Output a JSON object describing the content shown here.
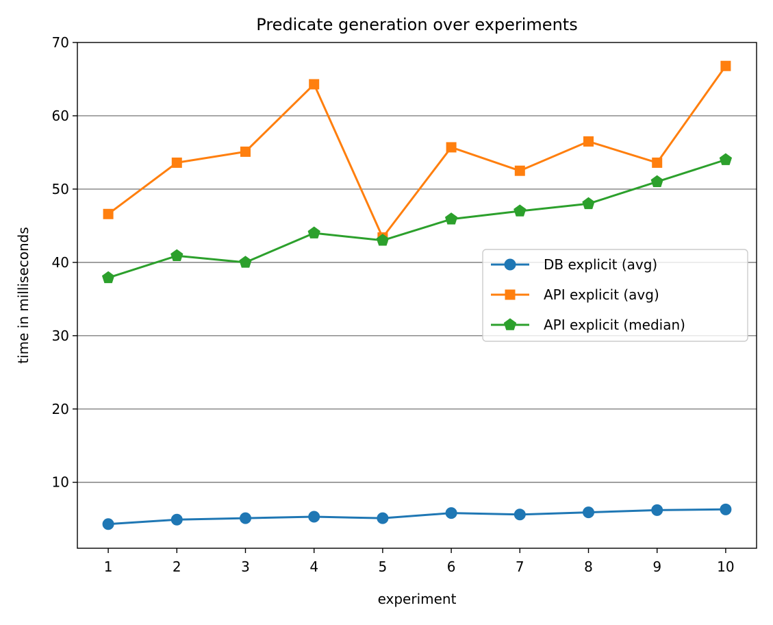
{
  "chart_data": {
    "type": "line",
    "title": "Predicate generation over experiments",
    "xlabel": "experiment",
    "ylabel": "time in milliseconds",
    "x": [
      1,
      2,
      3,
      4,
      5,
      6,
      7,
      8,
      9,
      10
    ],
    "xticks": [
      "1",
      "2",
      "3",
      "4",
      "5",
      "6",
      "7",
      "8",
      "9",
      "10"
    ],
    "xlim": [
      0.55,
      10.45
    ],
    "yticks": [
      10,
      20,
      30,
      40,
      50,
      60,
      70
    ],
    "ylim": [
      1.0,
      70
    ],
    "grid": "horizontal",
    "legend_position": "center-right",
    "series": [
      {
        "name": "DB explicit (avg)",
        "color": "#1f77b4",
        "marker": "circle",
        "values": [
          4.3,
          4.9,
          5.1,
          5.3,
          5.1,
          5.8,
          5.6,
          5.9,
          6.2,
          6.3
        ]
      },
      {
        "name": "API explicit (avg)",
        "color": "#ff7f0e",
        "marker": "square",
        "values": [
          46.6,
          53.6,
          55.1,
          64.3,
          43.4,
          55.7,
          52.5,
          56.5,
          53.6,
          66.8
        ]
      },
      {
        "name": "API explicit (median)",
        "color": "#2ca02c",
        "marker": "pentagon",
        "values": [
          37.9,
          40.9,
          40.0,
          44.0,
          43.0,
          45.9,
          47.0,
          48.0,
          51.0,
          54.0
        ]
      }
    ]
  }
}
